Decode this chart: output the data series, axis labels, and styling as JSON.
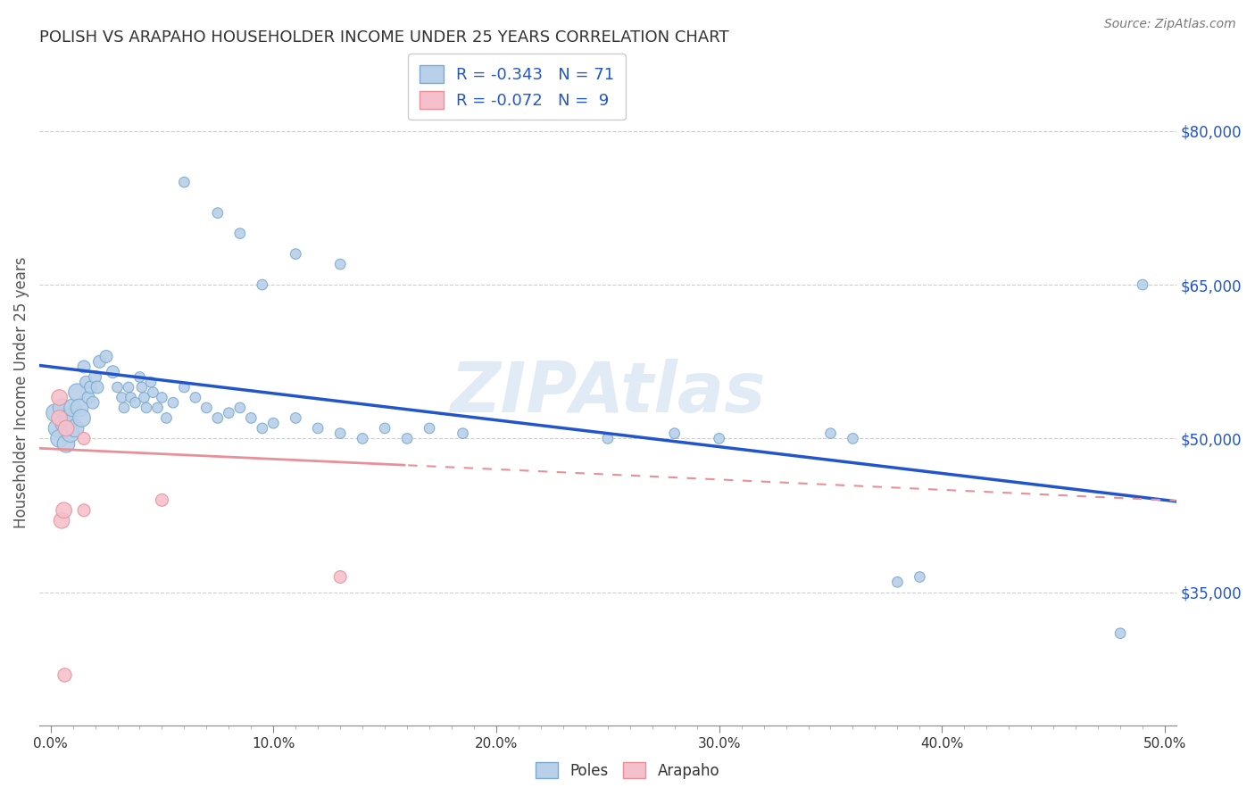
{
  "title": "POLISH VS ARAPAHO HOUSEHOLDER INCOME UNDER 25 YEARS CORRELATION CHART",
  "source": "Source: ZipAtlas.com",
  "ylabel": "Householder Income Under 25 years",
  "xlabel_ticks": [
    "0.0%",
    "",
    "",
    "",
    "",
    "",
    "",
    "",
    "",
    "10.0%",
    "",
    "",
    "",
    "",
    "",
    "",
    "",
    "",
    "",
    "20.0%",
    "",
    "",
    "",
    "",
    "",
    "",
    "",
    "",
    "",
    "30.0%",
    "",
    "",
    "",
    "",
    "",
    "",
    "",
    "",
    "",
    "40.0%",
    "",
    "",
    "",
    "",
    "",
    "",
    "",
    "",
    "",
    "50.0%"
  ],
  "xlabel_vals": [
    0.0,
    0.01,
    0.02,
    0.03,
    0.04,
    0.05,
    0.06,
    0.07,
    0.08,
    0.09,
    0.1,
    0.11,
    0.12,
    0.13,
    0.14,
    0.15,
    0.16,
    0.17,
    0.18,
    0.19,
    0.2,
    0.21,
    0.22,
    0.23,
    0.24,
    0.25,
    0.26,
    0.27,
    0.28,
    0.29,
    0.3,
    0.31,
    0.32,
    0.33,
    0.34,
    0.35,
    0.36,
    0.37,
    0.38,
    0.39,
    0.4,
    0.41,
    0.42,
    0.43,
    0.44,
    0.45,
    0.46,
    0.47,
    0.48,
    0.49,
    0.5
  ],
  "xlabel_major_ticks": [
    0.0,
    0.1,
    0.2,
    0.3,
    0.4,
    0.5
  ],
  "xlabel_major_labels": [
    "0.0%",
    "10.0%",
    "20.0%",
    "30.0%",
    "40.0%",
    "50.0%"
  ],
  "ylabel_ticks": [
    "$35,000",
    "$50,000",
    "$65,000",
    "$80,000"
  ],
  "ylabel_vals": [
    35000,
    50000,
    65000,
    80000
  ],
  "ylim": [
    22000,
    87000
  ],
  "xlim": [
    -0.005,
    0.505
  ],
  "watermark": "ZIPAtlas",
  "poles_color": "#b8d0e8",
  "poles_edge_color": "#7aaad0",
  "arapaho_color": "#f5c0cc",
  "arapaho_edge_color": "#e8909a",
  "trendline_poles_color": "#2255cc",
  "trendline_arapaho_color": "#e8909a",
  "legend_poles_label": "R = -0.343   N = 71",
  "legend_arapaho_label": "R = -0.072   N =  9",
  "poles_data": [
    [
      0.002,
      52500
    ],
    [
      0.003,
      51000
    ],
    [
      0.004,
      50000
    ],
    [
      0.005,
      53000
    ],
    [
      0.006,
      51500
    ],
    [
      0.007,
      49500
    ],
    [
      0.008,
      52000
    ],
    [
      0.009,
      50500
    ],
    [
      0.01,
      53000
    ],
    [
      0.011,
      51000
    ],
    [
      0.012,
      54500
    ],
    [
      0.013,
      53000
    ],
    [
      0.014,
      52000
    ],
    [
      0.015,
      57000
    ],
    [
      0.016,
      55500
    ],
    [
      0.017,
      54000
    ],
    [
      0.018,
      55000
    ],
    [
      0.019,
      53500
    ],
    [
      0.02,
      56000
    ],
    [
      0.021,
      55000
    ],
    [
      0.022,
      57500
    ],
    [
      0.025,
      58000
    ],
    [
      0.028,
      56500
    ],
    [
      0.03,
      55000
    ],
    [
      0.032,
      54000
    ],
    [
      0.033,
      53000
    ],
    [
      0.035,
      55000
    ],
    [
      0.036,
      54000
    ],
    [
      0.038,
      53500
    ],
    [
      0.04,
      56000
    ],
    [
      0.041,
      55000
    ],
    [
      0.042,
      54000
    ],
    [
      0.043,
      53000
    ],
    [
      0.045,
      55500
    ],
    [
      0.046,
      54500
    ],
    [
      0.048,
      53000
    ],
    [
      0.05,
      54000
    ],
    [
      0.052,
      52000
    ],
    [
      0.055,
      53500
    ],
    [
      0.06,
      55000
    ],
    [
      0.065,
      54000
    ],
    [
      0.07,
      53000
    ],
    [
      0.075,
      52000
    ],
    [
      0.08,
      52500
    ],
    [
      0.085,
      53000
    ],
    [
      0.09,
      52000
    ],
    [
      0.095,
      51000
    ],
    [
      0.1,
      51500
    ],
    [
      0.11,
      52000
    ],
    [
      0.12,
      51000
    ],
    [
      0.13,
      50500
    ],
    [
      0.14,
      50000
    ],
    [
      0.15,
      51000
    ],
    [
      0.16,
      50000
    ],
    [
      0.17,
      51000
    ],
    [
      0.185,
      50500
    ],
    [
      0.06,
      75000
    ],
    [
      0.075,
      72000
    ],
    [
      0.085,
      70000
    ],
    [
      0.11,
      68000
    ],
    [
      0.13,
      67000
    ],
    [
      0.095,
      65000
    ],
    [
      0.49,
      65000
    ],
    [
      0.25,
      50000
    ],
    [
      0.28,
      50500
    ],
    [
      0.3,
      50000
    ],
    [
      0.35,
      50500
    ],
    [
      0.36,
      50000
    ],
    [
      0.38,
      36000
    ],
    [
      0.39,
      36500
    ],
    [
      0.48,
      31000
    ]
  ],
  "arapaho_data": [
    [
      0.004,
      52000
    ],
    [
      0.004,
      54000
    ],
    [
      0.007,
      51000
    ],
    [
      0.015,
      50000
    ],
    [
      0.015,
      43000
    ],
    [
      0.05,
      44000
    ],
    [
      0.005,
      42000
    ],
    [
      0.006,
      43000
    ],
    [
      0.13,
      36500
    ]
  ],
  "arapaho_outlier": [
    0.006,
    27000
  ],
  "grid_color": "#cccccc",
  "background_color": "#ffffff",
  "title_color": "#333333",
  "axis_label_color": "#555555",
  "right_label_color": "#2255cc"
}
